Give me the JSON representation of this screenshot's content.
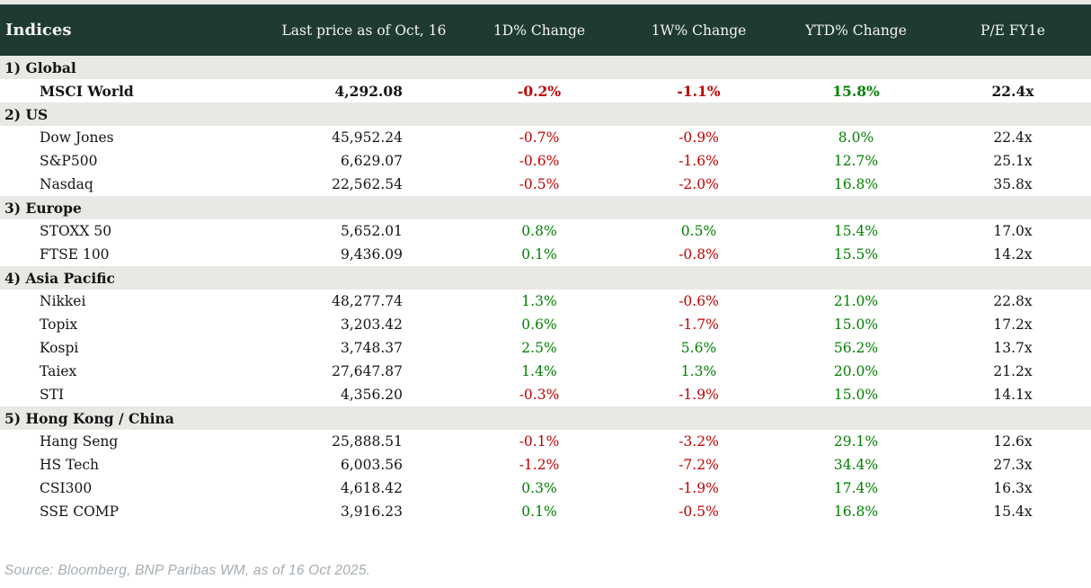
{
  "colors": {
    "header_bg": "#1e3a33",
    "header_fg": "#f4f4ef",
    "section_bg": "#e8e9e4",
    "negative": "#c00000",
    "positive": "#008000",
    "text": "#141414",
    "source": "#a6adb2"
  },
  "source_note": "Source: Bloomberg, BNP Paribas WM, as of 16 Oct 2025.",
  "chart_data": {
    "type": "table",
    "title": "Indices",
    "columns": [
      "Indices",
      "Last price as of Oct, 16",
      "1D% Change",
      "1W% Change",
      "YTD% Change",
      "P/E FY1e"
    ],
    "sections": [
      {
        "title": "1) Global",
        "rows": [
          {
            "cells": [
              "MSCI World",
              "4,292.08",
              "-0.2%",
              "-1.1%",
              "15.8%",
              "22.4x"
            ],
            "bold": true
          }
        ]
      },
      {
        "title": "2) US",
        "rows": [
          {
            "cells": [
              "Dow Jones",
              "45,952.24",
              "-0.7%",
              "-0.9%",
              "8.0%",
              "22.4x"
            ],
            "bold": false
          },
          {
            "cells": [
              "S&P500",
              "6,629.07",
              "-0.6%",
              "-1.6%",
              "12.7%",
              "25.1x"
            ],
            "bold": false
          },
          {
            "cells": [
              "Nasdaq",
              "22,562.54",
              "-0.5%",
              "-2.0%",
              "16.8%",
              "35.8x"
            ],
            "bold": false
          }
        ]
      },
      {
        "title": "3) Europe",
        "rows": [
          {
            "cells": [
              "STOXX 50",
              "5,652.01",
              "0.8%",
              "0.5%",
              "15.4%",
              "17.0x"
            ],
            "bold": false
          },
          {
            "cells": [
              "FTSE 100",
              "9,436.09",
              "0.1%",
              "-0.8%",
              "15.5%",
              "14.2x"
            ],
            "bold": false
          }
        ]
      },
      {
        "title": "4) Asia Pacific",
        "rows": [
          {
            "cells": [
              "Nikkei",
              "48,277.74",
              "1.3%",
              "-0.6%",
              "21.0%",
              "22.8x"
            ],
            "bold": false
          },
          {
            "cells": [
              "Topix",
              "3,203.42",
              "0.6%",
              "-1.7%",
              "15.0%",
              "17.2x"
            ],
            "bold": false
          },
          {
            "cells": [
              "Kospi",
              "3,748.37",
              "2.5%",
              "5.6%",
              "56.2%",
              "13.7x"
            ],
            "bold": false
          },
          {
            "cells": [
              "Taiex",
              "27,647.87",
              "1.4%",
              "1.3%",
              "20.0%",
              "21.2x"
            ],
            "bold": false
          },
          {
            "cells": [
              "STI",
              "4,356.20",
              "-0.3%",
              "-1.9%",
              "15.0%",
              "14.1x"
            ],
            "bold": false
          }
        ]
      },
      {
        "title": "5) Hong Kong / China",
        "rows": [
          {
            "cells": [
              "Hang Seng",
              "25,888.51",
              "-0.1%",
              "-3.2%",
              "29.1%",
              "12.6x"
            ],
            "bold": false
          },
          {
            "cells": [
              "HS Tech",
              "6,003.56",
              "-1.2%",
              "-7.2%",
              "34.4%",
              "27.3x"
            ],
            "bold": false
          },
          {
            "cells": [
              "CSI300",
              "4,618.42",
              "0.3%",
              "-1.9%",
              "17.4%",
              "16.3x"
            ],
            "bold": false
          },
          {
            "cells": [
              "SSE COMP",
              "3,916.23",
              "0.1%",
              "-0.5%",
              "16.8%",
              "15.4x"
            ],
            "bold": false
          }
        ]
      }
    ]
  }
}
